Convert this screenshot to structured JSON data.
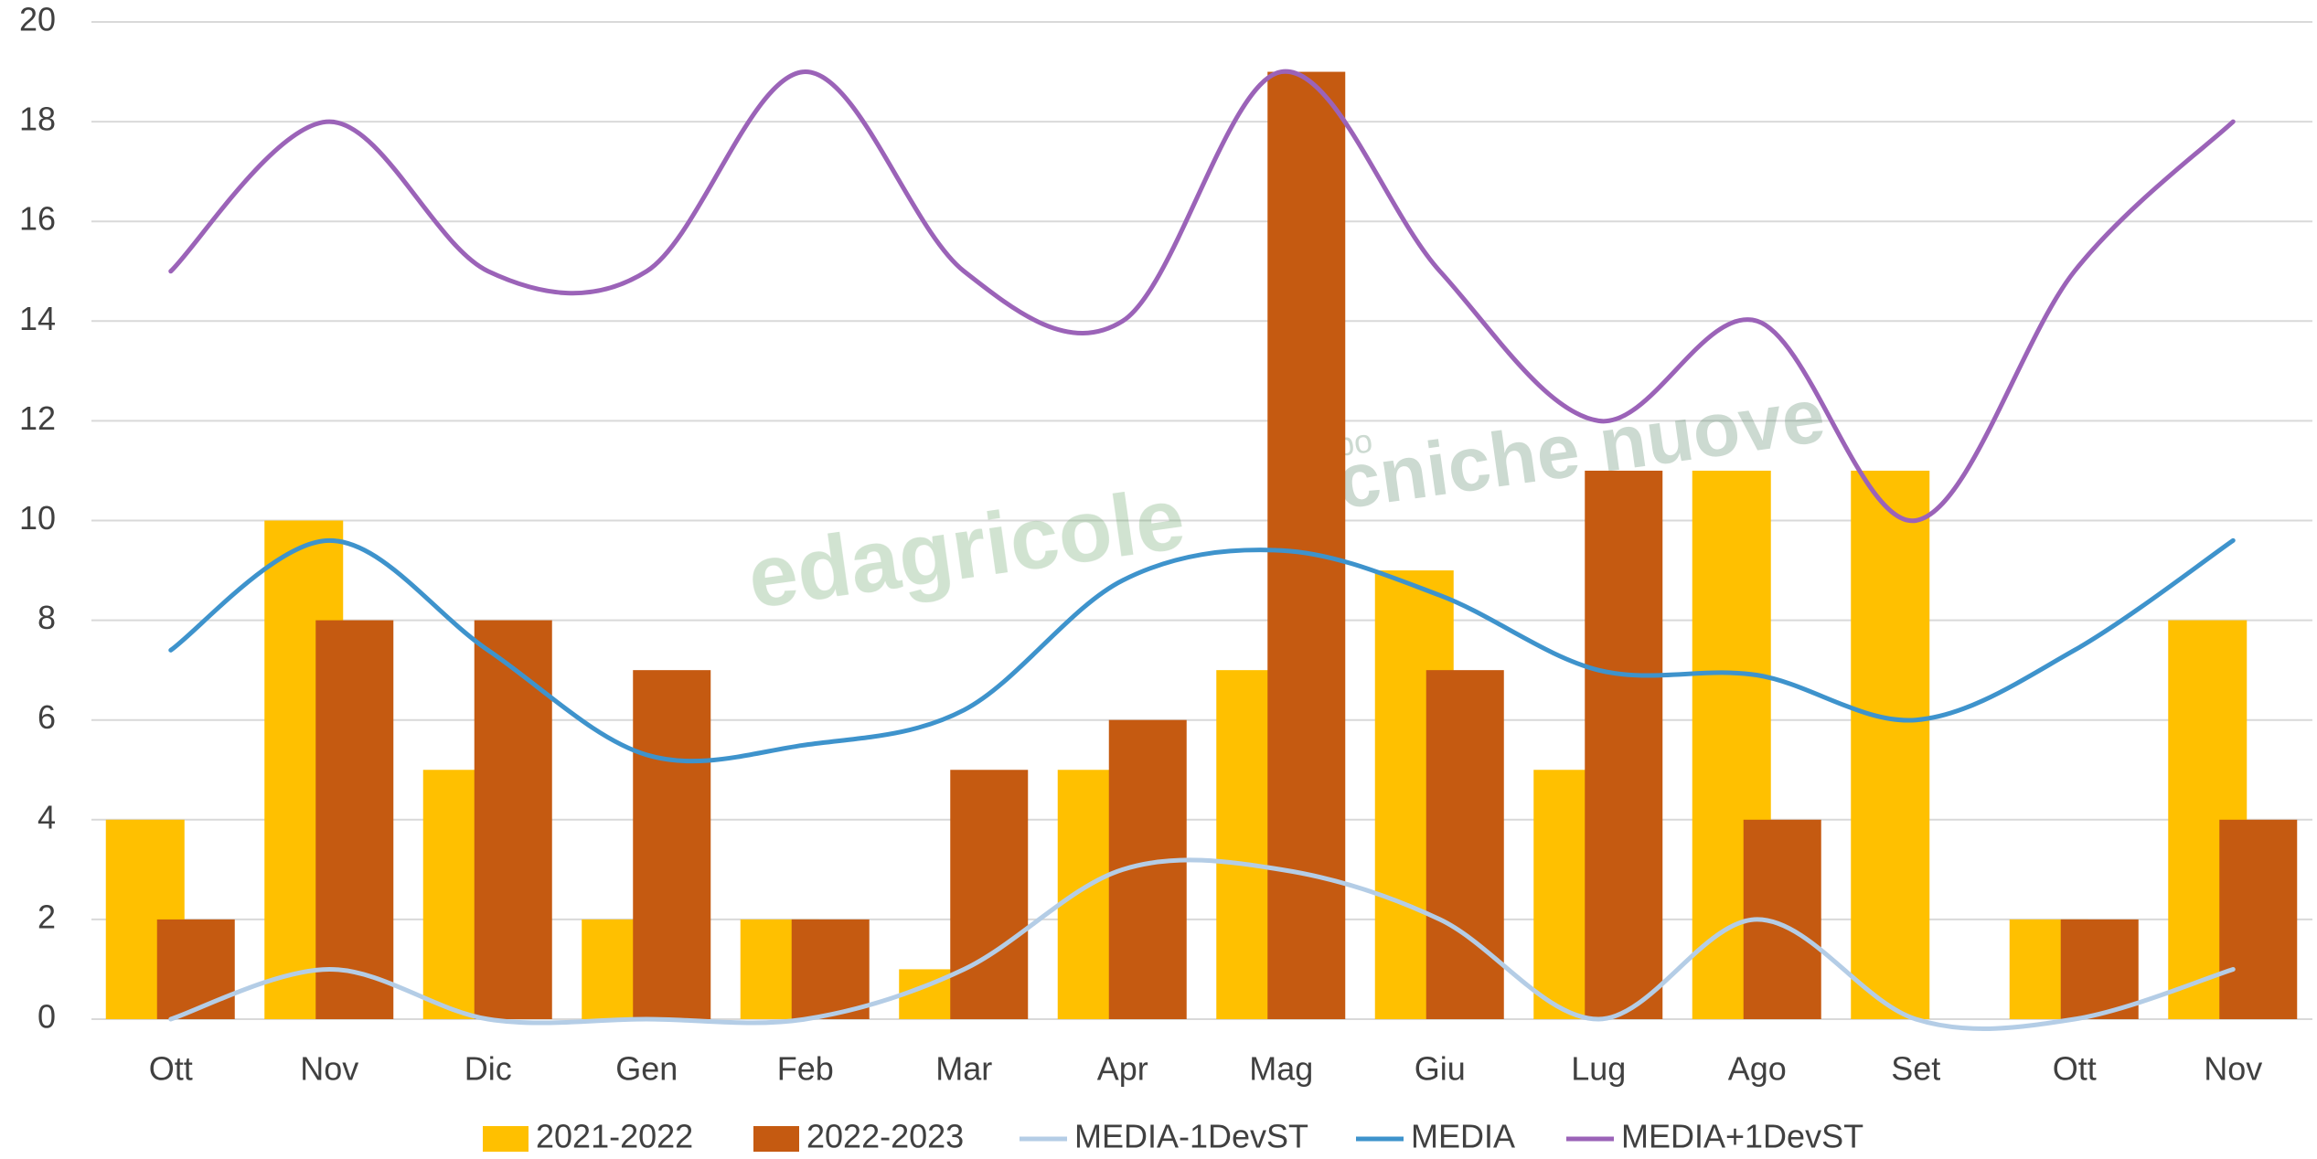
{
  "chart_data": {
    "type": "bar_line",
    "categories": [
      "Ott",
      "Nov",
      "Dic",
      "Gen",
      "Feb",
      "Mar",
      "Apr",
      "Mag",
      "Giu",
      "Lug",
      "Ago",
      "Set",
      "Ott",
      "Nov"
    ],
    "series": [
      {
        "name": "2021-2022",
        "kind": "bar",
        "color": "#FFC000",
        "values": [
          4,
          10,
          5,
          2,
          2,
          1,
          5,
          7,
          9,
          5,
          11,
          11,
          2,
          8
        ]
      },
      {
        "name": "2022-2023",
        "kind": "bar",
        "color": "#C55A11",
        "values": [
          2,
          8,
          8,
          7,
          2,
          5,
          6,
          19,
          7,
          11,
          4,
          null,
          2,
          4
        ]
      },
      {
        "name": "MEDIA-1DevST",
        "kind": "line",
        "color": "#B4CDE6",
        "values": [
          0,
          1,
          0,
          0,
          0,
          1,
          3,
          3,
          2,
          0,
          2,
          0,
          0,
          1
        ]
      },
      {
        "name": "MEDIA",
        "kind": "line",
        "color": "#3E93CC",
        "values": [
          7.4,
          9.6,
          7.4,
          5.3,
          5.5,
          6.2,
          8.8,
          9.4,
          8.5,
          7.0,
          6.9,
          6.0,
          7.4,
          9.6
        ]
      },
      {
        "name": "MEDIA+1DevST",
        "kind": "line",
        "color": "#9B63B8",
        "values": [
          15,
          18,
          15,
          15,
          19,
          15,
          14,
          19,
          15,
          12,
          14,
          10,
          15,
          18
        ]
      }
    ],
    "ylim": [
      0,
      20
    ],
    "yticks": [
      0,
      2,
      4,
      6,
      8,
      10,
      12,
      14,
      16,
      18,
      20
    ],
    "grid": true,
    "legend": "bottom",
    "watermark": [
      "edagricole",
      "gruppo",
      "tecniche nuove"
    ]
  }
}
